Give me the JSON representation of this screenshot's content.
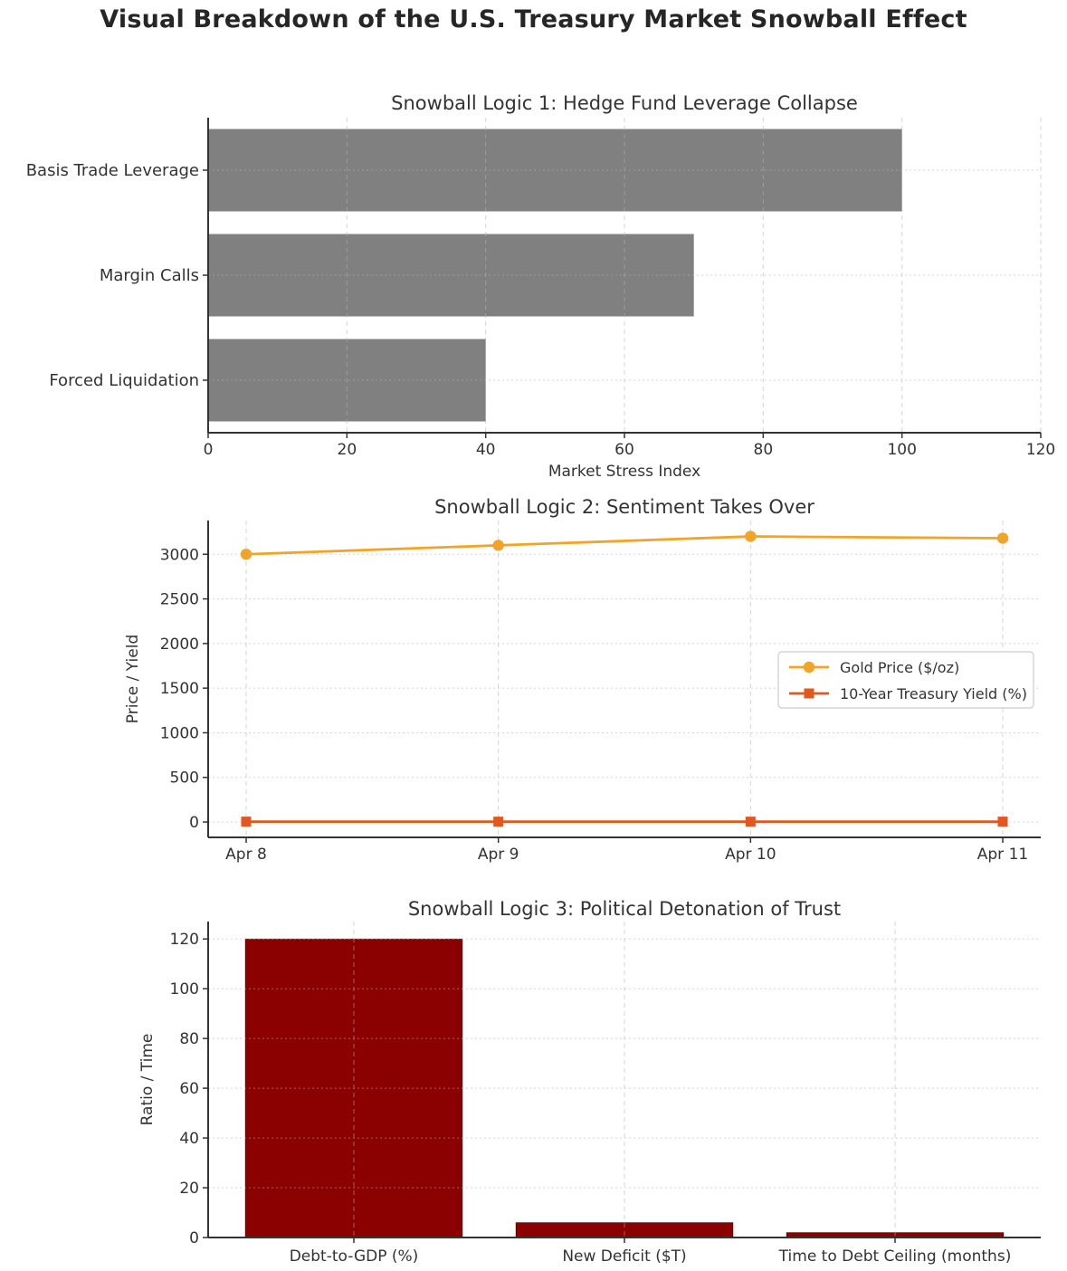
{
  "page_title": "Visual Breakdown of the U.S. Treasury Market Snowball Effect",
  "colors": {
    "title_text": "#262626",
    "chart_text": "#333333",
    "axis_line": "#333333",
    "grid_line": "#b3b3b3",
    "bar_gray": "#808080",
    "bar_darkred": "#8B0000",
    "gold_line": "#F0A428",
    "yield_line": "#E2571E",
    "legend_border": "#cccccc",
    "background": "#ffffff"
  },
  "chart_data": [
    {
      "type": "bar",
      "orientation": "horizontal",
      "title": "Snowball Logic 1: Hedge Fund Leverage Collapse",
      "categories": [
        "Basis Trade Leverage",
        "Margin Calls",
        "Forced Liquidation"
      ],
      "values": [
        100,
        70,
        40
      ],
      "xlabel": "Market Stress Index",
      "xlim": [
        0,
        120
      ],
      "xticks": [
        0,
        20,
        40,
        60,
        80,
        100,
        120
      ],
      "bar_color": "#808080",
      "grid": "on"
    },
    {
      "type": "line",
      "title": "Snowball Logic 2: Sentiment Takes Over",
      "x": [
        "Apr 8",
        "Apr 9",
        "Apr 10",
        "Apr 11"
      ],
      "series": [
        {
          "name": "Gold Price ($/oz)",
          "values": [
            3000,
            3100,
            3200,
            3180
          ],
          "color": "#F0A428",
          "marker": "circle"
        },
        {
          "name": "10-Year Treasury Yield (%)",
          "values": [
            4.3,
            4.3,
            4.4,
            4.5
          ],
          "color": "#E2571E",
          "marker": "square"
        }
      ],
      "ylabel": "Price / Yield",
      "yticks": [
        0,
        500,
        1000,
        1500,
        2000,
        2500,
        3000
      ],
      "ylim": [
        -172,
        3378
      ],
      "grid": "on",
      "legend_position": "center-right"
    },
    {
      "type": "bar",
      "orientation": "vertical",
      "title": "Snowball Logic 3: Political Detonation of Trust",
      "categories": [
        "Debt-to-GDP (%)",
        "New Deficit ($T)",
        "Time to Debt Ceiling (months)"
      ],
      "values": [
        120,
        6,
        2
      ],
      "ylabel": "Ratio / Time",
      "yticks": [
        0,
        20,
        40,
        60,
        80,
        100,
        120
      ],
      "ylim": [
        0,
        127
      ],
      "bar_color": "#8B0000",
      "grid": "on"
    }
  ]
}
